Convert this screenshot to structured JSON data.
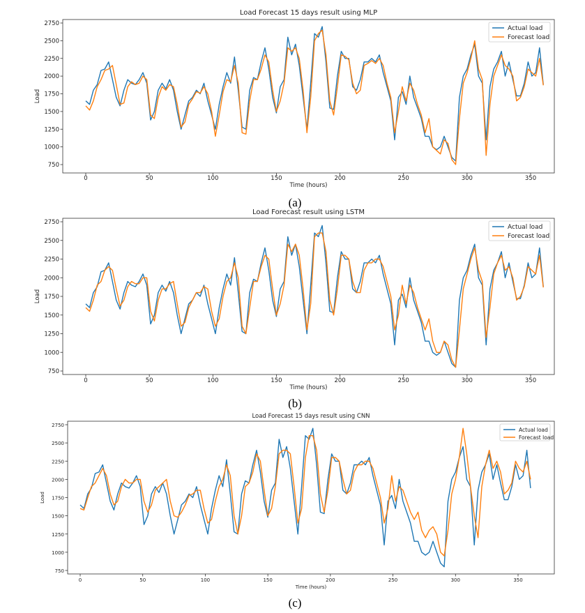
{
  "colors": {
    "actual": "#1f77b4",
    "forecast": "#ff7f0e"
  },
  "chart_data": [
    {
      "type": "line",
      "caption": "(a)",
      "title": "Load Forecast 15 days result using MLP",
      "xlabel": "Time (hours)",
      "ylabel": "Load",
      "xlim": [
        -18,
        378
      ],
      "ylim": [
        640,
        2800
      ],
      "xticks": [
        0,
        50,
        100,
        150,
        200,
        250,
        300,
        350
      ],
      "yticks": [
        750,
        1000,
        1250,
        1500,
        1750,
        2000,
        2250,
        2500,
        2750
      ],
      "grid": false,
      "legend": "top-right",
      "series": [
        {
          "name": "Actual load",
          "values": [
            1650,
            1600,
            1800,
            1880,
            2080,
            2100,
            2200,
            1950,
            1700,
            1580,
            1800,
            1950,
            1900,
            1880,
            1950,
            2050,
            1900,
            1380,
            1500,
            1800,
            1900,
            1820,
            1950,
            1800,
            1500,
            1250,
            1450,
            1650,
            1700,
            1800,
            1750,
            1900,
            1650,
            1450,
            1250,
            1600,
            1850,
            2050,
            1900,
            2270,
            1800,
            1280,
            1250,
            1800,
            1980,
            1950,
            2200,
            2400,
            2100,
            1700,
            1480,
            1850,
            1950,
            2550,
            2300,
            2450,
            2150,
            1700,
            1250,
            1900,
            2600,
            2550,
            2700,
            2200,
            1550,
            1530,
            2000,
            2350,
            2250,
            2250,
            1850,
            1800,
            1950,
            2200,
            2200,
            2250,
            2200,
            2300,
            2050,
            1850,
            1650,
            1100,
            1700,
            1780,
            1600,
            2000,
            1700,
            1550,
            1400,
            1150,
            1150,
            1000,
            960,
            1000,
            1150,
            1000,
            850,
            800,
            1700,
            2000,
            2100,
            2300,
            2450,
            2000,
            1900,
            1100,
            1850,
            2100,
            2200,
            2350,
            2000,
            2200,
            1950,
            1720,
            1720,
            1900,
            2200,
            2000,
            2050,
            2400,
            1880
          ]
        },
        {
          "name": "Forecast load",
          "values": [
            1580,
            1520,
            1650,
            1850,
            1950,
            2080,
            2100,
            2150,
            1880,
            1600,
            1620,
            1850,
            1920,
            1880,
            1900,
            2000,
            1950,
            1450,
            1400,
            1700,
            1850,
            1800,
            1880,
            1850,
            1600,
            1280,
            1350,
            1600,
            1680,
            1780,
            1760,
            1850,
            1750,
            1500,
            1150,
            1450,
            1780,
            1950,
            1920,
            2150,
            1900,
            1200,
            1180,
            1650,
            1950,
            1950,
            2100,
            2300,
            2200,
            1800,
            1500,
            1650,
            1900,
            2400,
            2350,
            2400,
            2250,
            1800,
            1200,
            1700,
            2500,
            2600,
            2650,
            2300,
            1650,
            1450,
            1850,
            2300,
            2280,
            2230,
            1900,
            1750,
            1800,
            2150,
            2180,
            2220,
            2180,
            2250,
            2150,
            1900,
            1700,
            1200,
            1500,
            1850,
            1650,
            1900,
            1800,
            1600,
            1450,
            1200,
            1400,
            1000,
            950,
            900,
            1100,
            1050,
            820,
            750,
            1400,
            1900,
            2050,
            2250,
            2500,
            2100,
            1950,
            880,
            1600,
            2000,
            2150,
            2300,
            2150,
            2100,
            2000,
            1650,
            1700,
            1850,
            2100,
            2050,
            2000,
            2250,
            1870
          ]
        }
      ]
    },
    {
      "type": "line",
      "caption": "(b)",
      "title": "Load Forecast result using LSTM",
      "xlabel": "Time (hours)",
      "ylabel": "Load",
      "xlim": [
        -18,
        378
      ],
      "ylim": [
        640,
        2800
      ],
      "xticks": [
        0,
        50,
        100,
        150,
        200,
        250,
        300,
        350
      ],
      "yticks": [
        750,
        1000,
        1250,
        1500,
        1750,
        2000,
        2250,
        2500,
        2750
      ],
      "grid": false,
      "legend": "top-right",
      "series": [
        {
          "name": "Actual load",
          "values": [
            1650,
            1600,
            1800,
            1880,
            2080,
            2100,
            2200,
            1950,
            1700,
            1580,
            1800,
            1950,
            1900,
            1880,
            1950,
            2050,
            1900,
            1380,
            1500,
            1800,
            1900,
            1820,
            1950,
            1800,
            1500,
            1250,
            1450,
            1650,
            1700,
            1800,
            1750,
            1900,
            1650,
            1450,
            1250,
            1600,
            1850,
            2050,
            1900,
            2270,
            1800,
            1280,
            1250,
            1800,
            1980,
            1950,
            2200,
            2400,
            2100,
            1700,
            1480,
            1850,
            1950,
            2550,
            2300,
            2450,
            2150,
            1700,
            1250,
            1900,
            2600,
            2550,
            2700,
            2200,
            1550,
            1530,
            2000,
            2350,
            2250,
            2250,
            1850,
            1800,
            1950,
            2200,
            2200,
            2250,
            2200,
            2300,
            2050,
            1850,
            1650,
            1100,
            1700,
            1780,
            1600,
            2000,
            1700,
            1550,
            1400,
            1150,
            1150,
            1000,
            960,
            1000,
            1150,
            1000,
            850,
            800,
            1700,
            2000,
            2100,
            2300,
            2450,
            2000,
            1900,
            1100,
            1850,
            2100,
            2200,
            2350,
            2000,
            2200,
            1950,
            1720,
            1720,
            1900,
            2200,
            2000,
            2050,
            2400,
            1880
          ]
        },
        {
          "name": "Forecast load",
          "values": [
            1600,
            1550,
            1700,
            1900,
            1950,
            2100,
            2150,
            2100,
            1850,
            1620,
            1700,
            1880,
            1950,
            1920,
            1920,
            2000,
            2000,
            1550,
            1420,
            1700,
            1850,
            1850,
            1920,
            1950,
            1650,
            1350,
            1400,
            1600,
            1700,
            1800,
            1800,
            1880,
            1850,
            1550,
            1350,
            1450,
            1750,
            1950,
            2000,
            2200,
            2000,
            1350,
            1250,
            1600,
            1950,
            1950,
            2150,
            2300,
            2250,
            1850,
            1500,
            1650,
            1900,
            2450,
            2350,
            2450,
            2300,
            1850,
            1300,
            1650,
            2550,
            2600,
            2600,
            2350,
            1700,
            1500,
            1850,
            2300,
            2300,
            2250,
            1950,
            1800,
            1800,
            2100,
            2200,
            2200,
            2250,
            2250,
            2150,
            1950,
            1750,
            1300,
            1500,
            1900,
            1650,
            1900,
            1800,
            1600,
            1450,
            1300,
            1450,
            1150,
            1000,
            1000,
            1150,
            1100,
            900,
            800,
            1300,
            1850,
            2050,
            2250,
            2400,
            2100,
            1950,
            1200,
            1600,
            2050,
            2200,
            2300,
            2100,
            2150,
            2000,
            1700,
            1750,
            1880,
            2150,
            2100,
            2050,
            2300,
            1870
          ]
        }
      ]
    },
    {
      "type": "line",
      "caption": "(c)",
      "title": "Load Forecast 15 days result using CNN",
      "xlabel": "Time (hours)",
      "ylabel": "Load",
      "xlim": [
        -18,
        378
      ],
      "ylim": [
        700,
        2800
      ],
      "xticks": [
        0,
        50,
        100,
        150,
        200,
        250,
        300,
        350
      ],
      "yticks": [
        750,
        1000,
        1250,
        1500,
        1750,
        2000,
        2250,
        2500,
        2750
      ],
      "grid": false,
      "legend": "top-right",
      "series": [
        {
          "name": "Actual load",
          "values": [
            1650,
            1600,
            1800,
            1880,
            2080,
            2100,
            2200,
            1950,
            1700,
            1580,
            1800,
            1950,
            1900,
            1880,
            1950,
            2050,
            1900,
            1380,
            1500,
            1800,
            1900,
            1820,
            1950,
            1800,
            1500,
            1250,
            1450,
            1650,
            1700,
            1800,
            1750,
            1900,
            1650,
            1450,
            1250,
            1600,
            1850,
            2050,
            1900,
            2270,
            1800,
            1280,
            1250,
            1800,
            1980,
            1950,
            2200,
            2400,
            2100,
            1700,
            1480,
            1850,
            1950,
            2550,
            2300,
            2450,
            2150,
            1700,
            1250,
            1900,
            2600,
            2550,
            2700,
            2200,
            1550,
            1530,
            2000,
            2350,
            2250,
            2250,
            1850,
            1800,
            1950,
            2200,
            2200,
            2250,
            2200,
            2300,
            2050,
            1850,
            1650,
            1100,
            1700,
            1780,
            1600,
            2000,
            1700,
            1550,
            1400,
            1150,
            1150,
            1000,
            960,
            1000,
            1150,
            1000,
            850,
            800,
            1700,
            2000,
            2100,
            2300,
            2450,
            2000,
            1900,
            1100,
            1850,
            2100,
            2200,
            2350,
            2000,
            2200,
            1950,
            1720,
            1720,
            1900,
            2200,
            2000,
            2050,
            2400,
            1880
          ]
        },
        {
          "name": "Forecast load",
          "values": [
            1600,
            1580,
            1750,
            1900,
            1950,
            2050,
            2150,
            2050,
            1800,
            1650,
            1700,
            1900,
            2000,
            1950,
            1950,
            2000,
            2000,
            1700,
            1550,
            1650,
            1850,
            1900,
            1950,
            2000,
            1700,
            1500,
            1480,
            1550,
            1650,
            1780,
            1800,
            1850,
            1850,
            1600,
            1400,
            1450,
            1700,
            1900,
            2000,
            2200,
            2050,
            1500,
            1250,
            1500,
            1900,
            1950,
            2100,
            2350,
            2250,
            1850,
            1500,
            1600,
            1900,
            2350,
            2400,
            2400,
            2350,
            1900,
            1400,
            1600,
            2300,
            2600,
            2600,
            2400,
            1800,
            1550,
            1850,
            2300,
            2300,
            2250,
            2000,
            1800,
            1850,
            2100,
            2200,
            2200,
            2250,
            2250,
            2150,
            1950,
            1750,
            1400,
            1600,
            2050,
            1700,
            1900,
            1850,
            1700,
            1550,
            1450,
            1550,
            1300,
            1200,
            1300,
            1350,
            1250,
            1000,
            950,
            1300,
            1800,
            2000,
            2300,
            2700,
            2350,
            1900,
            1500,
            1200,
            1900,
            2200,
            2400,
            2150,
            2250,
            2100,
            1800,
            1850,
            1950,
            2250,
            2150,
            2100,
            2250,
            2000
          ]
        }
      ]
    }
  ]
}
